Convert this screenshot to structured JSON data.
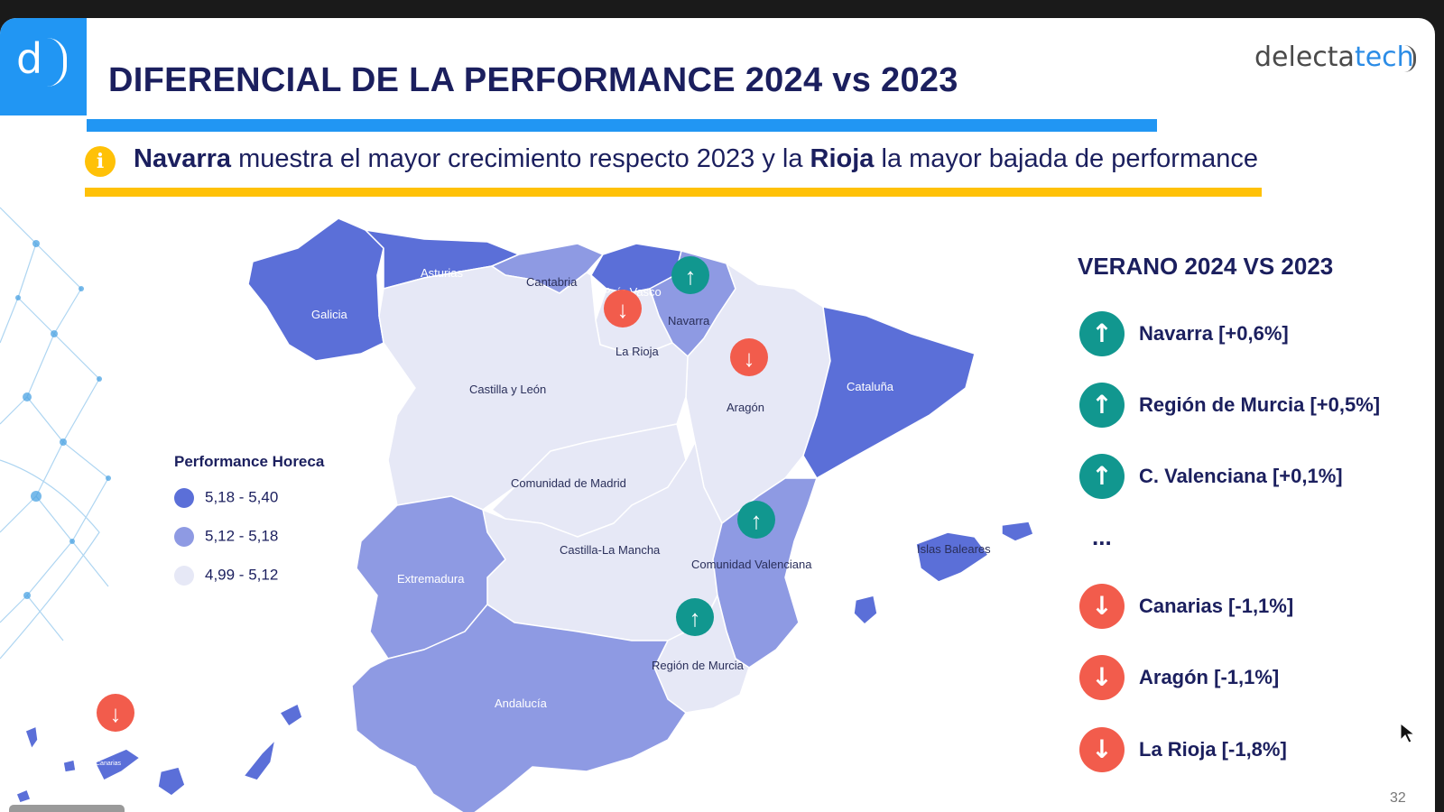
{
  "header": {
    "title": "DIFERENCIAL DE LA PERFORMANCE 2024 vs 2023",
    "logo_letter": "d",
    "brand_part1": "delecta",
    "brand_part2": "tech"
  },
  "insight": {
    "bold1": "Navarra",
    "text1": " muestra el mayor crecimiento respecto 2023 y la ",
    "bold2": "Rioja",
    "text2": " la mayor bajada de performance",
    "icon": "info-icon",
    "icon_glyph": "i"
  },
  "legend": {
    "title": "Performance Horeca",
    "items": [
      {
        "label": "5,18 - 5,40",
        "color": "#5b6fd8"
      },
      {
        "label": "5,12 - 5,18",
        "color": "#8e9ae3"
      },
      {
        "label": "4,99 - 5,12",
        "color": "#e6e8f6"
      }
    ]
  },
  "map": {
    "regions": [
      {
        "name": "Galicia",
        "tier": 1
      },
      {
        "name": "Asturias",
        "tier": 1
      },
      {
        "name": "Cantabria",
        "tier": 2
      },
      {
        "name": "País Vasco",
        "tier": 1
      },
      {
        "name": "Navarra",
        "tier": 2
      },
      {
        "name": "La Rioja",
        "tier": 3
      },
      {
        "name": "Aragón",
        "tier": 3
      },
      {
        "name": "Cataluña",
        "tier": 1
      },
      {
        "name": "Castilla y León",
        "tier": 3
      },
      {
        "name": "Comunidad de Madrid",
        "tier": 3
      },
      {
        "name": "Castilla-La Mancha",
        "tier": 3
      },
      {
        "name": "Comunidad Valenciana",
        "tier": 2
      },
      {
        "name": "Extremadura",
        "tier": 2
      },
      {
        "name": "Región de Murcia",
        "tier": 3
      },
      {
        "name": "Andalucía",
        "tier": 2
      },
      {
        "name": "Islas Baleares",
        "tier": 1
      },
      {
        "name": "Canarias",
        "tier": 1
      }
    ],
    "markers": [
      {
        "region": "Navarra",
        "direction": "up"
      },
      {
        "region": "La Rioja",
        "direction": "down"
      },
      {
        "region": "Aragón",
        "direction": "down"
      },
      {
        "region": "Comunidad Valenciana",
        "direction": "up"
      },
      {
        "region": "Región de Murcia",
        "direction": "up"
      },
      {
        "region": "Canarias",
        "direction": "down"
      }
    ],
    "up_glyph": "↑",
    "down_glyph": "↓"
  },
  "side_panel": {
    "title": "VERANO 2024 VS 2023",
    "rows": [
      {
        "label": "Navarra [+0,6%]",
        "direction": "up",
        "glyph": "↑"
      },
      {
        "label": "Región de Murcia [+0,5%]",
        "direction": "up",
        "glyph": "↑"
      },
      {
        "label": "C. Valenciana [+0,1%]",
        "direction": "up",
        "glyph": "↑"
      },
      {
        "label": "Canarias [-1,1%]",
        "direction": "down",
        "glyph": "↓"
      },
      {
        "label": "Aragón [-1,1%]",
        "direction": "down",
        "glyph": "↓"
      },
      {
        "label": "La Rioja [-1,8%]",
        "direction": "down",
        "glyph": "↓"
      }
    ],
    "ellipsis": "..."
  },
  "footer": {
    "page_number": "32"
  }
}
